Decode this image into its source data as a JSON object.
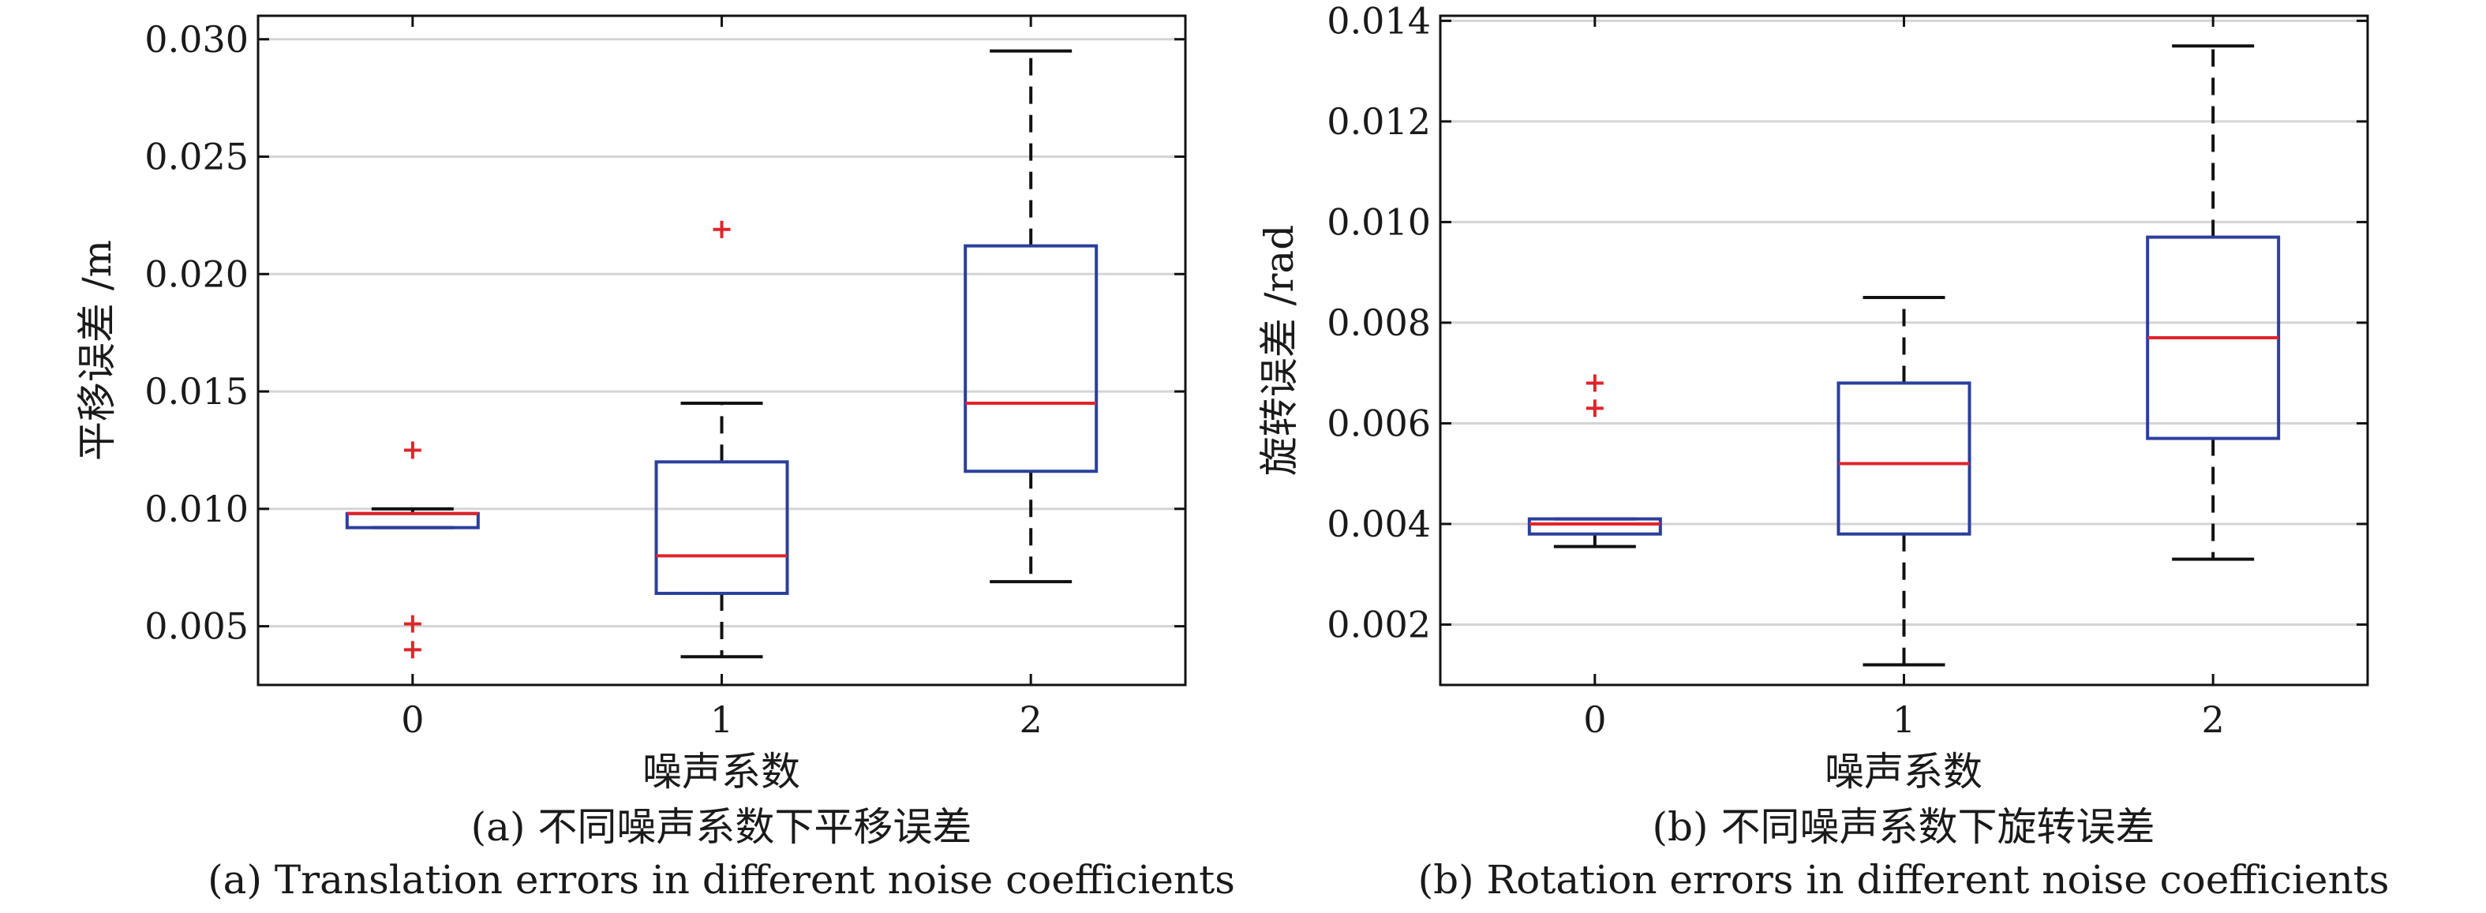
{
  "chart_data": [
    {
      "type": "box",
      "xlabel": "噪声系数",
      "ylabel": "平移误差 /m",
      "caption_cn": "(a) 不同噪声系数下平移误差",
      "caption_en": "(a) Translation errors in different noise coefficients",
      "categories": [
        "0",
        "1",
        "2"
      ],
      "ylim": [
        0.0025,
        0.031
      ],
      "yticks": [
        0.005,
        0.01,
        0.015,
        0.02,
        0.025,
        0.03
      ],
      "ytick_labels": [
        "0.005",
        "0.010",
        "0.015",
        "0.020",
        "0.025",
        "0.030"
      ],
      "grid": true,
      "boxes": [
        {
          "category": "0",
          "whisker_low": 0.0092,
          "q1": 0.0092,
          "median": 0.0098,
          "q3": 0.0098,
          "whisker_high": 0.01,
          "outliers": [
            0.0125,
            0.0051,
            0.004
          ]
        },
        {
          "category": "1",
          "whisker_low": 0.0037,
          "q1": 0.0064,
          "median": 0.008,
          "q3": 0.012,
          "whisker_high": 0.0145,
          "outliers": [
            0.0219
          ]
        },
        {
          "category": "2",
          "whisker_low": 0.0069,
          "q1": 0.0116,
          "median": 0.0145,
          "q3": 0.0212,
          "whisker_high": 0.0295,
          "outliers": []
        }
      ]
    },
    {
      "type": "box",
      "xlabel": "噪声系数",
      "ylabel": "旋转误差 /rad",
      "caption_cn": "(b) 不同噪声系数下旋转误差",
      "caption_en": "(b) Rotation errors in different noise coefficients",
      "categories": [
        "0",
        "1",
        "2"
      ],
      "ylim": [
        0.0008,
        0.0141
      ],
      "yticks": [
        0.002,
        0.004,
        0.006,
        0.008,
        0.01,
        0.012,
        0.014
      ],
      "ytick_labels": [
        "0.002",
        "0.004",
        "0.006",
        "0.008",
        "0.010",
        "0.012",
        "0.014"
      ],
      "grid": true,
      "boxes": [
        {
          "category": "0",
          "whisker_low": 0.00355,
          "q1": 0.0038,
          "median": 0.004,
          "q3": 0.0041,
          "whisker_high": 0.0041,
          "outliers": [
            0.0068,
            0.0063
          ]
        },
        {
          "category": "1",
          "whisker_low": 0.0012,
          "q1": 0.0038,
          "median": 0.0052,
          "q3": 0.0068,
          "whisker_high": 0.0085,
          "outliers": []
        },
        {
          "category": "2",
          "whisker_low": 0.0033,
          "q1": 0.0057,
          "median": 0.0077,
          "q3": 0.0097,
          "whisker_high": 0.0135,
          "outliers": []
        }
      ]
    }
  ],
  "colors": {
    "box": "#2b3f9c",
    "median": "#e0242b",
    "outlier": "#e0242b",
    "whisker": "#111111",
    "grid": "#d4d4d4",
    "axis": "#111111"
  }
}
